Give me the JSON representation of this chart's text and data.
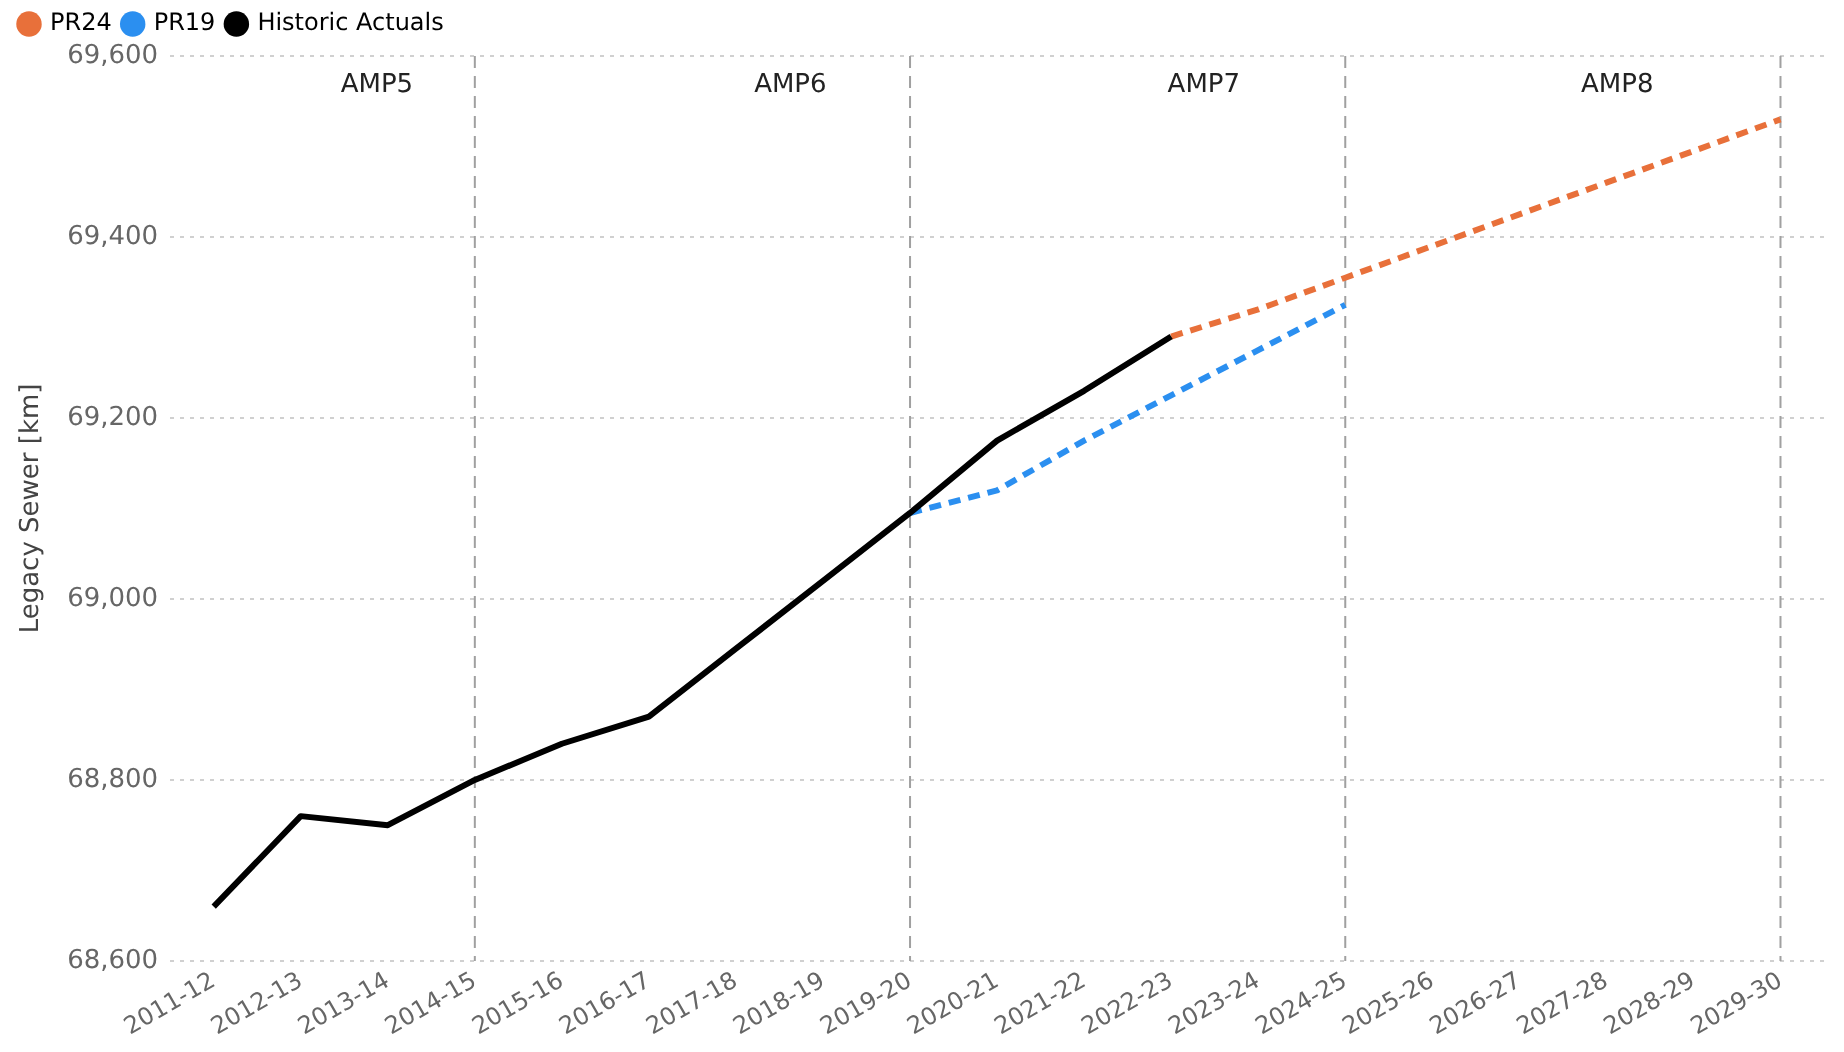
{
  "chart_data": {
    "type": "line",
    "ylabel": "Legacy Sewer [km]",
    "categories": [
      "2011-12",
      "2012-13",
      "2013-14",
      "2014-15",
      "2015-16",
      "2016-17",
      "2017-18",
      "2018-19",
      "2019-20",
      "2020-21",
      "2021-22",
      "2022-23",
      "2023-24",
      "2024-25",
      "2025-26",
      "2026-27",
      "2027-28",
      "2028-29",
      "2029-30"
    ],
    "series": [
      {
        "name": "PR24",
        "color": "#e8703a",
        "line_style": "dashed",
        "values": [
          null,
          null,
          null,
          null,
          null,
          null,
          null,
          null,
          null,
          null,
          null,
          69290,
          69320,
          69355,
          69390,
          69425,
          69460,
          69495,
          69530
        ]
      },
      {
        "name": "PR19",
        "color": "#2b8ff0",
        "line_style": "dashed",
        "values": [
          null,
          null,
          null,
          null,
          null,
          null,
          null,
          null,
          69095,
          69120,
          69175,
          69225,
          69275,
          69325,
          null,
          null,
          null,
          null,
          null
        ]
      },
      {
        "name": "Historic Actuals",
        "color": "#000000",
        "line_style": "solid",
        "values": [
          68660,
          68760,
          68750,
          68800,
          68840,
          68870,
          68945,
          69020,
          69095,
          69175,
          69230,
          69290,
          null,
          null,
          null,
          null,
          null,
          null,
          null
        ]
      }
    ],
    "ylim": [
      68600,
      69600
    ],
    "yticks": [
      {
        "value": 68600,
        "label": "68,600"
      },
      {
        "value": 68800,
        "label": "68,800"
      },
      {
        "value": 69000,
        "label": "69,000"
      },
      {
        "value": 69200,
        "label": "69,200"
      },
      {
        "value": 69400,
        "label": "69,400"
      },
      {
        "value": 69600,
        "label": "69,600"
      }
    ],
    "grid": "y",
    "legend": "top left",
    "marker": "none",
    "ref_lines": [
      {
        "axis": "x",
        "value": "2014-15",
        "color": "#a0a0a0",
        "line_style": "dashed"
      },
      {
        "axis": "x",
        "value": "2019-20",
        "color": "#a0a0a0",
        "line_style": "dashed"
      },
      {
        "axis": "x",
        "value": "2024-25",
        "color": "#a0a0a0",
        "line_style": "dashed"
      },
      {
        "axis": "x",
        "value": "2029-30",
        "color": "#a0a0a0",
        "line_style": "dashed"
      }
    ],
    "annotations": [
      "AMP5",
      "AMP6",
      "AMP7",
      "AMP8"
    ]
  }
}
